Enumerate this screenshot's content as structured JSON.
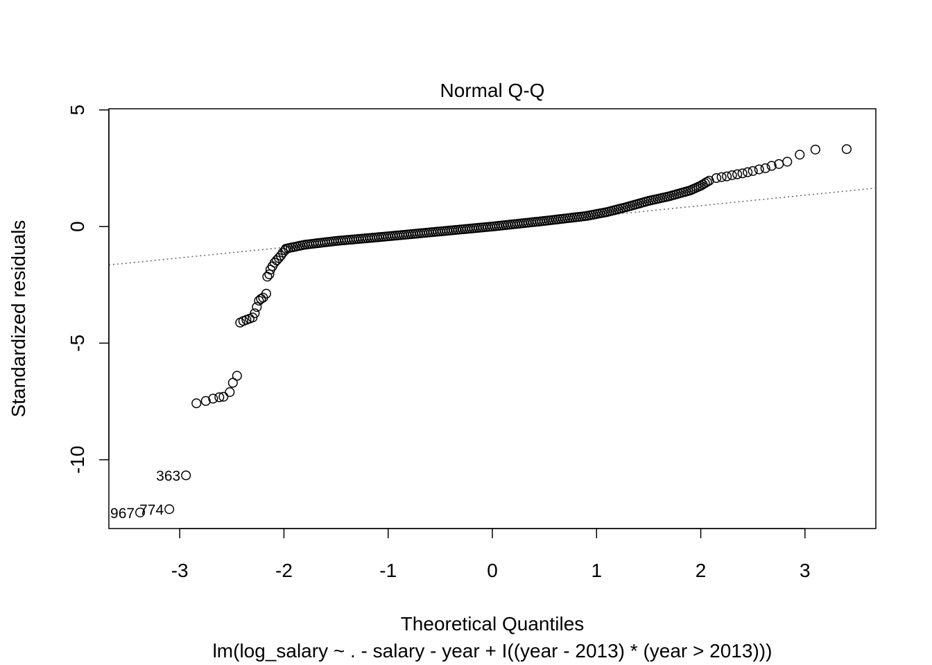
{
  "chart_data": {
    "type": "scatter",
    "title": "Normal Q-Q",
    "xlabel": "Theoretical Quantiles",
    "ylabel": "Standardized residuals",
    "subtitle": "lm(log_salary ~ . - salary - year + I((year - 2013) * (year > 2013)))",
    "xlim": [
      -3.68,
      3.68
    ],
    "ylim": [
      -12.95,
      5.05
    ],
    "x_ticks": [
      -3,
      -2,
      -1,
      0,
      1,
      2,
      3
    ],
    "x_tick_labels": [
      "-3",
      "-2",
      "-1",
      "0",
      "1",
      "2",
      "3"
    ],
    "y_ticks": [
      -10,
      -5,
      0,
      5
    ],
    "y_tick_labels": [
      "-10",
      "-5",
      "0",
      "5"
    ],
    "grid": false,
    "reference_line": {
      "intercept": 0.0,
      "slope": 0.448,
      "style": "dotted",
      "color": "#6b6b6b"
    },
    "outlier_labels": [
      {
        "label": "363",
        "x": -2.94,
        "y": -10.67
      },
      {
        "label": "774",
        "x": -3.1,
        "y": -12.12
      },
      {
        "label": "967",
        "x": -3.38,
        "y": -12.26
      }
    ],
    "tail_points": [
      {
        "x": -3.38,
        "y": -12.26
      },
      {
        "x": -3.1,
        "y": -12.12
      },
      {
        "x": -2.94,
        "y": -10.67
      },
      {
        "x": -2.84,
        "y": -7.58
      },
      {
        "x": -2.75,
        "y": -7.48
      },
      {
        "x": -2.68,
        "y": -7.38
      },
      {
        "x": -2.62,
        "y": -7.32
      },
      {
        "x": -2.58,
        "y": -7.3
      },
      {
        "x": -2.52,
        "y": -7.1
      },
      {
        "x": -2.49,
        "y": -6.7
      },
      {
        "x": -2.45,
        "y": -6.4
      },
      {
        "x": -2.42,
        "y": -4.12
      },
      {
        "x": -2.39,
        "y": -4.05
      },
      {
        "x": -2.36,
        "y": -4.0
      },
      {
        "x": -2.33,
        "y": -3.95
      },
      {
        "x": -2.3,
        "y": -3.9
      },
      {
        "x": -2.28,
        "y": -3.72
      },
      {
        "x": -2.26,
        "y": -3.45
      },
      {
        "x": -2.24,
        "y": -3.18
      },
      {
        "x": -2.22,
        "y": -3.1
      },
      {
        "x": -2.2,
        "y": -3.05
      },
      {
        "x": -2.17,
        "y": -2.88
      },
      {
        "x": -2.16,
        "y": -2.15
      },
      {
        "x": -2.14,
        "y": -2.05
      },
      {
        "x": -2.13,
        "y": -1.85
      },
      {
        "x": -2.11,
        "y": -1.7
      },
      {
        "x": -2.09,
        "y": -1.55
      },
      {
        "x": -2.07,
        "y": -1.45
      },
      {
        "x": -2.05,
        "y": -1.35
      },
      {
        "x": -2.03,
        "y": -1.25
      },
      {
        "x": -2.01,
        "y": -1.12
      },
      {
        "x": -1.99,
        "y": -1.02
      },
      {
        "x": 2.15,
        "y": 2.08
      },
      {
        "x": 2.2,
        "y": 2.12
      },
      {
        "x": 2.25,
        "y": 2.15
      },
      {
        "x": 2.3,
        "y": 2.2
      },
      {
        "x": 2.35,
        "y": 2.24
      },
      {
        "x": 2.4,
        "y": 2.28
      },
      {
        "x": 2.45,
        "y": 2.33
      },
      {
        "x": 2.5,
        "y": 2.38
      },
      {
        "x": 2.56,
        "y": 2.45
      },
      {
        "x": 2.62,
        "y": 2.5
      },
      {
        "x": 2.68,
        "y": 2.6
      },
      {
        "x": 2.75,
        "y": 2.68
      },
      {
        "x": 2.83,
        "y": 2.78
      },
      {
        "x": 2.95,
        "y": 3.08
      },
      {
        "x": 3.1,
        "y": 3.3
      },
      {
        "x": 3.4,
        "y": 3.32
      }
    ],
    "body_segments": [
      {
        "x": -1.98,
        "y": -0.95
      },
      {
        "x": -1.8,
        "y": -0.78
      },
      {
        "x": -1.5,
        "y": -0.62
      },
      {
        "x": -1.0,
        "y": -0.42
      },
      {
        "x": -0.5,
        "y": -0.21
      },
      {
        "x": 0.0,
        "y": 0.0
      },
      {
        "x": 0.5,
        "y": 0.24
      },
      {
        "x": 0.9,
        "y": 0.45
      },
      {
        "x": 1.1,
        "y": 0.62
      },
      {
        "x": 1.3,
        "y": 0.85
      },
      {
        "x": 1.5,
        "y": 1.1
      },
      {
        "x": 1.7,
        "y": 1.3
      },
      {
        "x": 1.9,
        "y": 1.55
      },
      {
        "x": 2.0,
        "y": 1.75
      },
      {
        "x": 2.1,
        "y": 2.02
      }
    ]
  }
}
